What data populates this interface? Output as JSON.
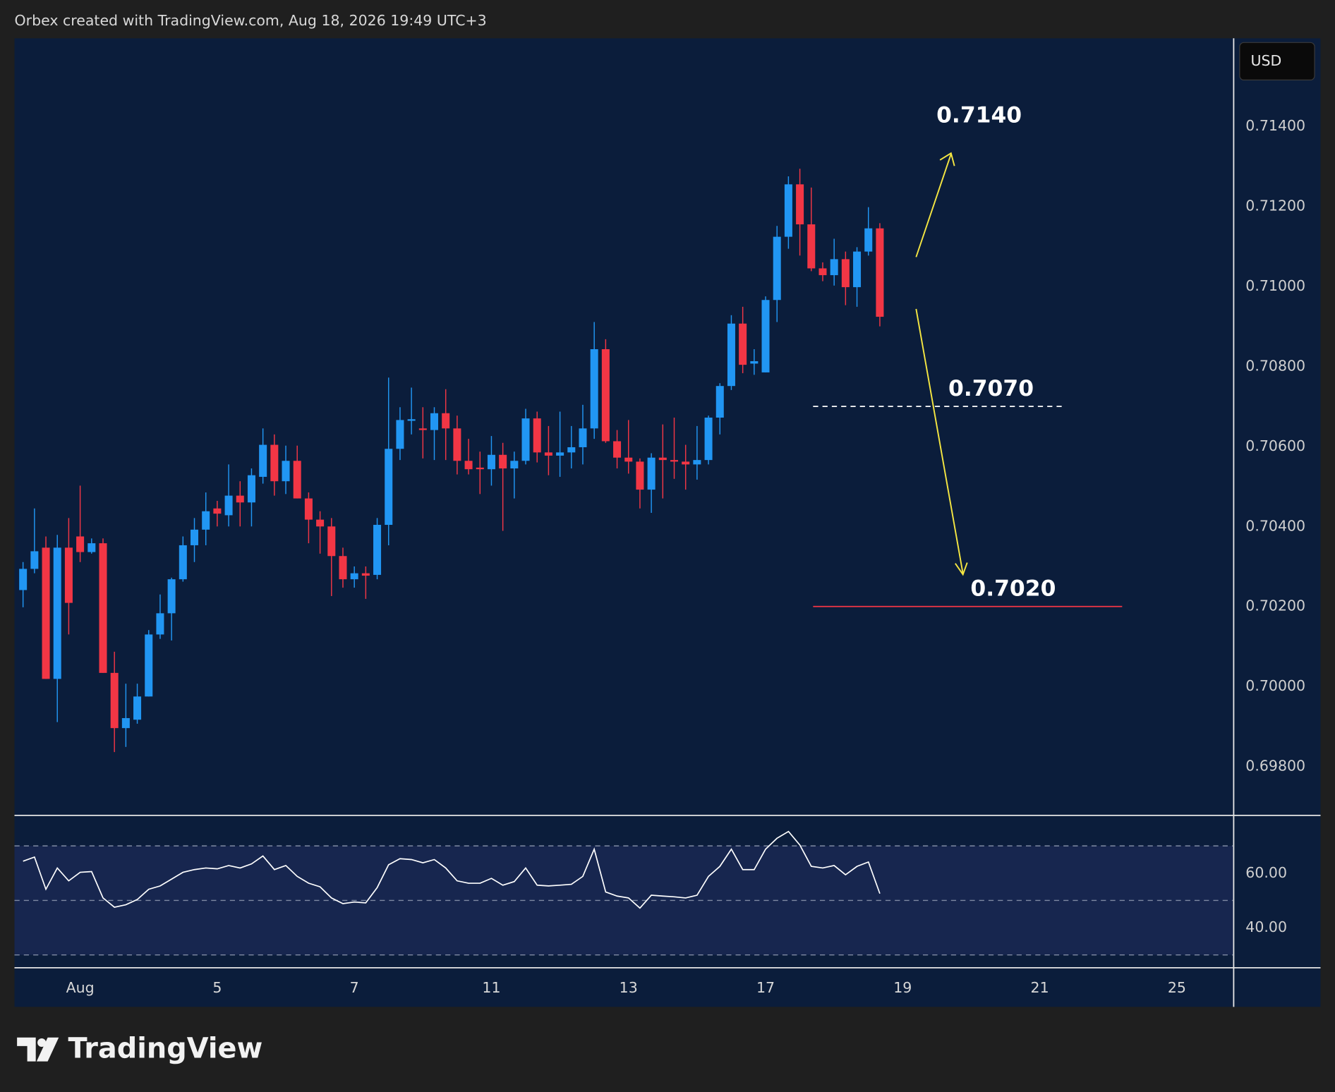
{
  "header": "Orbex created with TradingView.com, Aug 18, 2026 19:49 UTC+3",
  "currency": "USD",
  "brand": "TradingView",
  "chart_data": [
    {
      "type": "candlestick",
      "up_color": "#2196f3",
      "down_color": "#f23645",
      "open": [
        0.70241,
        0.70294,
        0.70347,
        0.70019,
        0.70347,
        0.70375,
        0.70336,
        0.70358,
        0.70034,
        0.69896,
        0.69917,
        0.69975,
        0.7013,
        0.70183,
        0.70268,
        0.70353,
        0.70392,
        0.70445,
        0.70428,
        0.70477,
        0.7046,
        0.70524,
        0.70604,
        0.70513,
        0.70564,
        0.7047,
        0.70417,
        0.704,
        0.70326,
        0.70268,
        0.70283,
        0.70279,
        0.70404,
        0.70594,
        0.70664,
        0.70645,
        0.70641,
        0.70683,
        0.70645,
        0.70564,
        0.70547,
        0.70543,
        0.70579,
        0.70545,
        0.70564,
        0.7067,
        0.70585,
        0.70577,
        0.70585,
        0.70598,
        0.70645,
        0.70843,
        0.70613,
        0.70572,
        0.70562,
        0.70492,
        0.70572,
        0.70566,
        0.70562,
        0.70555,
        0.70566,
        0.70672,
        0.70751,
        0.70907,
        0.70807,
        0.70785,
        0.70966,
        0.71124,
        0.71255,
        0.71155,
        0.71045,
        0.71028,
        0.71068,
        0.70998,
        0.71087,
        0.71145
      ],
      "high": [
        0.70311,
        0.70445,
        0.70375,
        0.70379,
        0.70421,
        0.70502,
        0.7037,
        0.7037,
        0.70087,
        0.70007,
        0.70007,
        0.70141,
        0.7023,
        0.70272,
        0.70375,
        0.70421,
        0.70485,
        0.70464,
        0.70555,
        0.70513,
        0.70545,
        0.70645,
        0.7063,
        0.70602,
        0.70602,
        0.70485,
        0.70438,
        0.70421,
        0.70347,
        0.703,
        0.703,
        0.70421,
        0.70772,
        0.70698,
        0.70747,
        0.70698,
        0.70698,
        0.70743,
        0.70677,
        0.70619,
        0.70587,
        0.70626,
        0.70609,
        0.70587,
        0.70694,
        0.70687,
        0.70651,
        0.70687,
        0.70651,
        0.70704,
        0.70911,
        0.70868,
        0.70641,
        0.70666,
        0.7057,
        0.70583,
        0.70655,
        0.70672,
        0.70604,
        0.70651,
        0.70677,
        0.70758,
        0.70928,
        0.70949,
        0.70843,
        0.70975,
        0.71151,
        0.71275,
        0.71294,
        0.71247,
        0.7106,
        0.71119,
        0.71087,
        0.71098,
        0.71198,
        0.71158
      ],
      "low": [
        0.70198,
        0.70283,
        0.70019,
        0.69911,
        0.7013,
        0.70311,
        0.70332,
        0.70034,
        0.69836,
        0.69849,
        0.69907,
        0.69975,
        0.70119,
        0.70115,
        0.70262,
        0.70311,
        0.70353,
        0.704,
        0.704,
        0.704,
        0.704,
        0.70507,
        0.70477,
        0.70481,
        0.7047,
        0.70358,
        0.70332,
        0.70226,
        0.70247,
        0.70247,
        0.70219,
        0.70268,
        0.70353,
        0.70566,
        0.7063,
        0.7057,
        0.70566,
        0.70566,
        0.7053,
        0.7053,
        0.70481,
        0.70502,
        0.70389,
        0.7047,
        0.70555,
        0.7056,
        0.70528,
        0.70524,
        0.70545,
        0.70555,
        0.70619,
        0.70609,
        0.70545,
        0.70532,
        0.70445,
        0.70434,
        0.7047,
        0.70519,
        0.70492,
        0.70517,
        0.70555,
        0.7063,
        0.70741,
        0.70783,
        0.70779,
        0.70785,
        0.70911,
        0.71094,
        0.71077,
        0.71038,
        0.71013,
        0.71002,
        0.70953,
        0.70949,
        0.71077,
        0.709
      ],
      "close": [
        0.70294,
        0.70338,
        0.70019,
        0.70347,
        0.70209,
        0.70336,
        0.70358,
        0.70034,
        0.69896,
        0.69921,
        0.69975,
        0.7013,
        0.70183,
        0.70268,
        0.70353,
        0.70392,
        0.70438,
        0.70432,
        0.70477,
        0.7046,
        0.70528,
        0.70604,
        0.70513,
        0.70564,
        0.7047,
        0.70417,
        0.704,
        0.70326,
        0.70268,
        0.70283,
        0.70277,
        0.70404,
        0.70594,
        0.70666,
        0.70668,
        0.70641,
        0.70683,
        0.70645,
        0.70564,
        0.70543,
        0.70543,
        0.70579,
        0.70545,
        0.70564,
        0.7067,
        0.70585,
        0.70577,
        0.70585,
        0.70598,
        0.70645,
        0.70843,
        0.70613,
        0.70572,
        0.70562,
        0.70492,
        0.70572,
        0.70566,
        0.70562,
        0.70555,
        0.70566,
        0.70672,
        0.70751,
        0.70907,
        0.70804,
        0.70813,
        0.70966,
        0.71124,
        0.71255,
        0.71155,
        0.71045,
        0.71028,
        0.71068,
        0.70998,
        0.71087,
        0.71145,
        0.70924
      ],
      "xlim": [
        -0.75,
        105.9
      ],
      "xticks": [
        {
          "value": 5,
          "label": "Aug"
        },
        {
          "value": 17,
          "label": "5"
        },
        {
          "value": 29,
          "label": "7"
        },
        {
          "value": 41,
          "label": "11"
        },
        {
          "value": 53,
          "label": "13"
        },
        {
          "value": 65,
          "label": "17"
        },
        {
          "value": 77,
          "label": "19"
        },
        {
          "value": 89,
          "label": "21"
        },
        {
          "value": 101,
          "label": "25"
        }
      ],
      "ylim": [
        0.6968,
        0.7162
      ],
      "yticks": [
        {
          "value": 0.714,
          "label": "0.71400"
        },
        {
          "value": 0.712,
          "label": "0.71200"
        },
        {
          "value": 0.71,
          "label": "0.71000"
        },
        {
          "value": 0.708,
          "label": "0.70800"
        },
        {
          "value": 0.706,
          "label": "0.70600"
        },
        {
          "value": 0.704,
          "label": "0.70400"
        },
        {
          "value": 0.702,
          "label": "0.70200"
        },
        {
          "value": 0.7,
          "label": "0.70000"
        },
        {
          "value": 0.698,
          "label": "0.69800"
        }
      ],
      "targets": [
        {
          "value": 0.714,
          "label": "0.7140"
        }
      ],
      "levels": [
        {
          "value": 0.707,
          "label": "0.7070",
          "style": "dashed",
          "color": "#ffffff"
        },
        {
          "value": 0.702,
          "label": "0.7020",
          "style": "solid",
          "color": "#f23645"
        }
      ]
    },
    {
      "type": "line",
      "color": "#ffffff",
      "band_color": "#17264f",
      "values": [
        64.4,
        65.9,
        54.1,
        61.9,
        57.2,
        60.3,
        60.6,
        50.9,
        47.5,
        48.4,
        50.3,
        54.1,
        55.3,
        57.8,
        60.3,
        61.3,
        61.9,
        61.6,
        62.8,
        61.9,
        63.4,
        66.3,
        61.3,
        62.8,
        58.8,
        56.3,
        55.0,
        50.9,
        48.8,
        49.4,
        49.1,
        54.7,
        63.1,
        65.3,
        65.0,
        63.8,
        65.0,
        61.9,
        57.2,
        56.3,
        56.3,
        58.1,
        55.6,
        56.9,
        61.9,
        55.6,
        55.3,
        55.6,
        55.9,
        58.8,
        68.8,
        53.1,
        51.6,
        50.9,
        47.2,
        51.9,
        51.6,
        51.3,
        50.9,
        51.9,
        58.8,
        62.5,
        68.8,
        61.3,
        61.3,
        68.8,
        72.8,
        75.3,
        70.3,
        62.5,
        61.9,
        62.8,
        59.4,
        62.5,
        64.1,
        52.5
      ],
      "ylim": [
        25.3,
        81.2
      ],
      "yticks": [
        {
          "value": 60,
          "label": "60.00"
        },
        {
          "value": 40,
          "label": "40.00"
        }
      ],
      "band_lines": [
        70,
        50,
        30
      ]
    }
  ]
}
